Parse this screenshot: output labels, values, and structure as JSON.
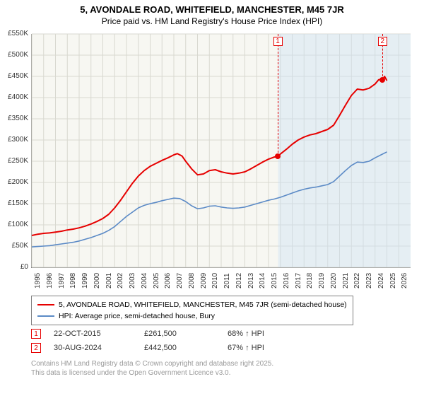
{
  "title_line1": "5, AVONDALE ROAD, WHITEFIELD, MANCHESTER, M45 7JR",
  "title_line2": "Price paid vs. HM Land Registry's House Price Index (HPI)",
  "chart": {
    "type": "line",
    "plot_background": "#f7f7f2",
    "grid_color": "#d8d8d0",
    "hpi_shade_color": "#cfe2f3",
    "hpi_shade_opacity": 0.45,
    "x_min": 1995,
    "x_max": 2027,
    "x_ticks": [
      1995,
      1996,
      1997,
      1998,
      1999,
      2000,
      2001,
      2002,
      2003,
      2004,
      2005,
      2006,
      2007,
      2008,
      2009,
      2010,
      2011,
      2012,
      2013,
      2014,
      2015,
      2016,
      2017,
      2018,
      2019,
      2020,
      2021,
      2022,
      2023,
      2024,
      2025,
      2026
    ],
    "y_min": 0,
    "y_max": 550000,
    "y_step": 50000,
    "y_tick_labels": [
      "£0",
      "£50K",
      "£100K",
      "£150K",
      "£200K",
      "£250K",
      "£300K",
      "£350K",
      "£400K",
      "£450K",
      "£500K",
      "£550K"
    ],
    "series": [
      {
        "name": "price_paid",
        "color": "#e60000",
        "width": 2,
        "points": [
          [
            1995.0,
            75000
          ],
          [
            1995.5,
            78000
          ],
          [
            1996.0,
            80000
          ],
          [
            1996.5,
            81000
          ],
          [
            1997.0,
            83000
          ],
          [
            1997.5,
            85000
          ],
          [
            1998.0,
            88000
          ],
          [
            1998.5,
            90000
          ],
          [
            1999.0,
            93000
          ],
          [
            1999.5,
            97000
          ],
          [
            2000.0,
            102000
          ],
          [
            2000.5,
            108000
          ],
          [
            2001.0,
            115000
          ],
          [
            2001.5,
            125000
          ],
          [
            2002.0,
            140000
          ],
          [
            2002.5,
            158000
          ],
          [
            2003.0,
            178000
          ],
          [
            2003.5,
            198000
          ],
          [
            2004.0,
            215000
          ],
          [
            2004.5,
            228000
          ],
          [
            2005.0,
            238000
          ],
          [
            2005.5,
            245000
          ],
          [
            2006.0,
            252000
          ],
          [
            2006.5,
            258000
          ],
          [
            2007.0,
            265000
          ],
          [
            2007.3,
            268000
          ],
          [
            2007.7,
            262000
          ],
          [
            2008.0,
            250000
          ],
          [
            2008.5,
            232000
          ],
          [
            2009.0,
            218000
          ],
          [
            2009.5,
            220000
          ],
          [
            2010.0,
            228000
          ],
          [
            2010.5,
            230000
          ],
          [
            2011.0,
            225000
          ],
          [
            2011.5,
            222000
          ],
          [
            2012.0,
            220000
          ],
          [
            2012.5,
            222000
          ],
          [
            2013.0,
            225000
          ],
          [
            2013.5,
            232000
          ],
          [
            2014.0,
            240000
          ],
          [
            2014.5,
            248000
          ],
          [
            2015.0,
            255000
          ],
          [
            2015.5,
            260000
          ],
          [
            2015.81,
            261500
          ],
          [
            2016.0,
            267000
          ],
          [
            2016.5,
            278000
          ],
          [
            2017.0,
            290000
          ],
          [
            2017.5,
            300000
          ],
          [
            2018.0,
            307000
          ],
          [
            2018.5,
            312000
          ],
          [
            2019.0,
            315000
          ],
          [
            2019.5,
            320000
          ],
          [
            2020.0,
            325000
          ],
          [
            2020.5,
            335000
          ],
          [
            2021.0,
            358000
          ],
          [
            2021.5,
            382000
          ],
          [
            2022.0,
            405000
          ],
          [
            2022.5,
            420000
          ],
          [
            2023.0,
            418000
          ],
          [
            2023.5,
            422000
          ],
          [
            2024.0,
            432000
          ],
          [
            2024.3,
            442000
          ],
          [
            2024.66,
            442500
          ],
          [
            2024.8,
            450000
          ],
          [
            2025.0,
            440000
          ]
        ]
      },
      {
        "name": "hpi",
        "color": "#5b8ac6",
        "width": 1.6,
        "points": [
          [
            1995.0,
            48000
          ],
          [
            1995.5,
            49000
          ],
          [
            1996.0,
            50000
          ],
          [
            1996.5,
            51000
          ],
          [
            1997.0,
            53000
          ],
          [
            1997.5,
            55000
          ],
          [
            1998.0,
            57000
          ],
          [
            1998.5,
            59000
          ],
          [
            1999.0,
            62000
          ],
          [
            1999.5,
            66000
          ],
          [
            2000.0,
            70000
          ],
          [
            2000.5,
            75000
          ],
          [
            2001.0,
            80000
          ],
          [
            2001.5,
            87000
          ],
          [
            2002.0,
            96000
          ],
          [
            2002.5,
            108000
          ],
          [
            2003.0,
            120000
          ],
          [
            2003.5,
            130000
          ],
          [
            2004.0,
            140000
          ],
          [
            2004.5,
            146000
          ],
          [
            2005.0,
            150000
          ],
          [
            2005.5,
            153000
          ],
          [
            2006.0,
            157000
          ],
          [
            2006.5,
            160000
          ],
          [
            2007.0,
            163000
          ],
          [
            2007.5,
            162000
          ],
          [
            2008.0,
            155000
          ],
          [
            2008.5,
            145000
          ],
          [
            2009.0,
            138000
          ],
          [
            2009.5,
            140000
          ],
          [
            2010.0,
            144000
          ],
          [
            2010.5,
            145000
          ],
          [
            2011.0,
            142000
          ],
          [
            2011.5,
            140000
          ],
          [
            2012.0,
            139000
          ],
          [
            2012.5,
            140000
          ],
          [
            2013.0,
            142000
          ],
          [
            2013.5,
            146000
          ],
          [
            2014.0,
            150000
          ],
          [
            2014.5,
            154000
          ],
          [
            2015.0,
            158000
          ],
          [
            2015.5,
            161000
          ],
          [
            2016.0,
            165000
          ],
          [
            2016.5,
            170000
          ],
          [
            2017.0,
            175000
          ],
          [
            2017.5,
            180000
          ],
          [
            2018.0,
            184000
          ],
          [
            2018.5,
            187000
          ],
          [
            2019.0,
            189000
          ],
          [
            2019.5,
            192000
          ],
          [
            2020.0,
            195000
          ],
          [
            2020.5,
            202000
          ],
          [
            2021.0,
            215000
          ],
          [
            2021.5,
            228000
          ],
          [
            2022.0,
            240000
          ],
          [
            2022.5,
            248000
          ],
          [
            2023.0,
            247000
          ],
          [
            2023.5,
            250000
          ],
          [
            2024.0,
            258000
          ],
          [
            2024.5,
            265000
          ],
          [
            2025.0,
            272000
          ]
        ]
      }
    ],
    "hpi_shade_start": 2015.81,
    "markers": [
      {
        "num": "1",
        "x": 2015.81,
        "y": 261500,
        "color": "#e60000"
      },
      {
        "num": "2",
        "x": 2024.66,
        "y": 442500,
        "color": "#e60000"
      }
    ]
  },
  "legend": {
    "items": [
      {
        "color": "#e60000",
        "label": "5, AVONDALE ROAD, WHITEFIELD, MANCHESTER, M45 7JR (semi-detached house)"
      },
      {
        "color": "#5b8ac6",
        "label": "HPI: Average price, semi-detached house, Bury"
      }
    ]
  },
  "sales": [
    {
      "num": "1",
      "color": "#e60000",
      "date": "22-OCT-2015",
      "price": "£261,500",
      "delta": "68% ↑ HPI"
    },
    {
      "num": "2",
      "color": "#e60000",
      "date": "30-AUG-2024",
      "price": "£442,500",
      "delta": "67% ↑ HPI"
    }
  ],
  "footer_line1": "Contains HM Land Registry data © Crown copyright and database right 2025.",
  "footer_line2": "This data is licensed under the Open Government Licence v3.0."
}
